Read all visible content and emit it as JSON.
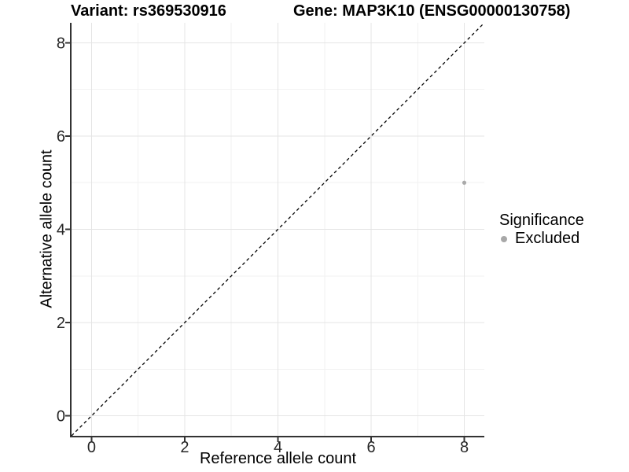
{
  "chart_data": {
    "type": "scatter",
    "title_left": "Variant: rs369530916",
    "title_right": "Gene: MAP3K10 (ENSG00000130758)",
    "xlabel": "Reference allele count",
    "ylabel": "Alternative allele count",
    "xlim": [
      -0.43,
      8.43
    ],
    "ylim": [
      -0.43,
      8.43
    ],
    "xticks": [
      0,
      2,
      4,
      6,
      8
    ],
    "yticks": [
      0,
      2,
      4,
      6,
      8
    ],
    "xminor": [
      1,
      3,
      5,
      7
    ],
    "yminor": [
      1,
      3,
      5,
      7
    ],
    "grid": "on",
    "reference_line": {
      "kind": "identity",
      "style": "dashed",
      "color": "#000000"
    },
    "series": [
      {
        "name": "Excluded",
        "color": "#aaaaaa",
        "points": [
          [
            8,
            5
          ]
        ]
      }
    ],
    "legend": {
      "title": "Significance",
      "position": "right",
      "items": [
        {
          "label": "Excluded",
          "color": "#a8a8a8"
        }
      ]
    },
    "colors": {
      "grid_major": "#e4e4e4",
      "grid_minor": "#f2f2f2",
      "axis_line": "#333333",
      "tick_text": "#262626",
      "point": "#aaaaaa"
    }
  }
}
